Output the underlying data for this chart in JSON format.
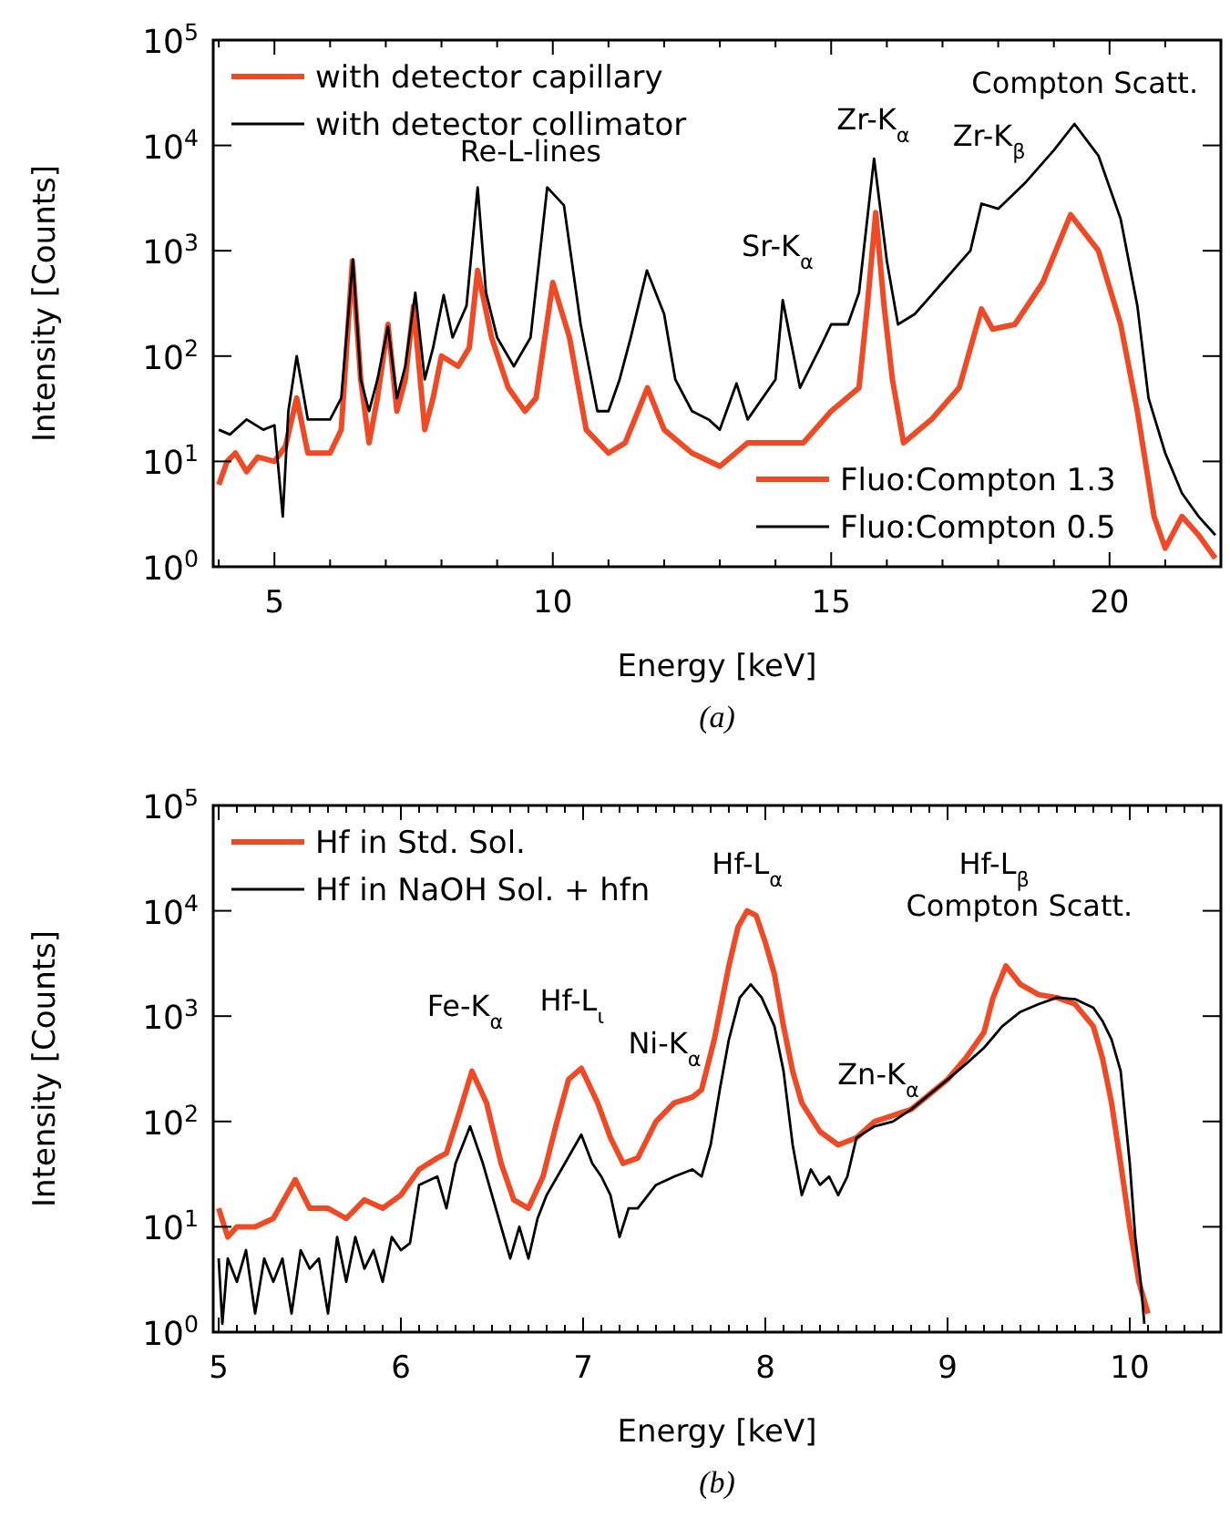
{
  "chart_data": [
    {
      "type": "line",
      "xlabel": "Energy [keV]",
      "ylabel": "Intensity [Counts]",
      "log": true,
      "legend": "top left",
      "line_style": "solid",
      "xlim": [
        3.9,
        22
      ],
      "ylim": [
        1,
        100000
      ],
      "xticks": [
        {
          "value": 4,
          "label": null
        },
        5,
        {
          "value": 6,
          "label": null
        },
        {
          "value": 7,
          "label": null
        },
        {
          "value": 8,
          "label": null
        },
        {
          "value": 9,
          "label": null
        },
        10,
        {
          "value": 11,
          "label": null
        },
        {
          "value": 12,
          "label": null
        },
        {
          "value": 13,
          "label": null
        },
        {
          "value": 14,
          "label": null
        },
        15,
        {
          "value": 16,
          "label": null
        },
        {
          "value": 17,
          "label": null
        },
        {
          "value": 18,
          "label": null
        },
        {
          "value": 19,
          "label": null
        },
        20,
        {
          "value": 21,
          "label": null
        }
      ],
      "yticks": [
        {
          "value": 1,
          "label": "10$^{0}$"
        },
        {
          "value": 10,
          "label": "10$^{1}$"
        },
        {
          "value": 100,
          "label": "10$^{2}$"
        },
        {
          "value": 1000,
          "label": "10$^{3}$"
        },
        {
          "value": 10000,
          "label": "10$^{4}$"
        },
        {
          "value": 100000,
          "label": "10$^{5}$"
        }
      ],
      "series": [
        {
          "name": "with detector capillary",
          "color": "#ef4a26",
          "x": [
            4.0,
            4.15,
            4.3,
            4.5,
            4.7,
            5.0,
            5.2,
            5.4,
            5.6,
            6.0,
            6.2,
            6.4,
            6.55,
            6.7,
            6.85,
            7.04,
            7.2,
            7.35,
            7.5,
            7.7,
            7.85,
            8.0,
            8.3,
            8.5,
            8.65,
            8.9,
            9.2,
            9.5,
            9.7,
            10.0,
            10.3,
            10.6,
            11.0,
            11.3,
            11.7,
            12.0,
            12.5,
            13.0,
            13.5,
            14.0,
            14.5,
            15.0,
            15.5,
            15.65,
            15.8,
            15.95,
            16.1,
            16.3,
            16.8,
            17.3,
            17.7,
            17.9,
            18.3,
            18.8,
            19.3,
            19.8,
            20.2,
            20.5,
            20.8,
            21.0,
            21.3,
            21.6,
            21.9
          ],
          "values": [
            6,
            10,
            12,
            8,
            11,
            10,
            14,
            40,
            12,
            12,
            20,
            800,
            60,
            15,
            40,
            200,
            30,
            60,
            300,
            20,
            40,
            100,
            80,
            120,
            650,
            150,
            50,
            30,
            40,
            500,
            150,
            20,
            12,
            15,
            50,
            20,
            12,
            9,
            15,
            15,
            15,
            30,
            50,
            300,
            2300,
            300,
            60,
            15,
            25,
            50,
            280,
            180,
            200,
            500,
            2200,
            1000,
            200,
            30,
            3,
            1.5,
            3,
            2,
            1.2
          ]
        },
        {
          "name": "with detector collimator",
          "color": "#000000",
          "x": [
            4.0,
            4.2,
            4.5,
            4.8,
            5.0,
            5.15,
            5.25,
            5.4,
            5.6,
            6.0,
            6.2,
            6.41,
            6.55,
            6.7,
            6.85,
            7.04,
            7.2,
            7.35,
            7.53,
            7.7,
            7.85,
            8.04,
            8.2,
            8.45,
            8.65,
            8.8,
            9.0,
            9.3,
            9.6,
            9.9,
            10.2,
            10.5,
            10.8,
            11.0,
            11.2,
            11.4,
            11.69,
            12.0,
            12.2,
            12.5,
            12.8,
            13.0,
            13.3,
            13.5,
            14.0,
            14.13,
            14.44,
            14.8,
            15.0,
            15.3,
            15.5,
            15.77,
            16.0,
            16.2,
            16.5,
            17.0,
            17.5,
            17.7,
            18.0,
            18.5,
            19.0,
            19.37,
            19.8,
            20.2,
            20.5,
            20.7,
            21.0,
            21.3,
            21.6,
            21.9
          ],
          "values": [
            20,
            18,
            25,
            20,
            22,
            3,
            30,
            100,
            25,
            25,
            40,
            830,
            60,
            30,
            60,
            190,
            40,
            80,
            400,
            60,
            120,
            380,
            150,
            300,
            4000,
            400,
            150,
            80,
            150,
            4000,
            2700,
            200,
            30,
            30,
            60,
            150,
            650,
            250,
            60,
            30,
            25,
            20,
            55,
            25,
            60,
            340,
            50,
            120,
            200,
            200,
            400,
            7500,
            800,
            200,
            250,
            500,
            1000,
            2800,
            2500,
            4500,
            9000,
            16000,
            8000,
            2000,
            300,
            40,
            12,
            5,
            3,
            2
          ]
        }
      ],
      "annotations": [
        "Re-L-lines",
        "Sr-K$_{α}$",
        "Zr-K$_{α}$",
        "Zr-K$_{β}$",
        "Compton Scatt.",
        "Fluo:Compton 1.3",
        "Fluo:Compton 0.5",
        "(a)"
      ]
    },
    {
      "type": "line",
      "xlabel": "Energy [keV]",
      "ylabel": "Intensity [Counts]",
      "log": true,
      "legend": "top left",
      "line_style": "solid",
      "xlim": [
        4.97,
        10.5
      ],
      "ylim": [
        1,
        100000
      ],
      "xticks": [
        5,
        {
          "value": 5.1,
          "label": null
        },
        {
          "value": 5.2,
          "label": null
        },
        {
          "value": 5.3,
          "label": null
        },
        {
          "value": 5.4,
          "label": null
        },
        {
          "value": 5.5,
          "label": null
        },
        {
          "value": 5.6,
          "label": null
        },
        {
          "value": 5.7,
          "label": null
        },
        {
          "value": 5.8,
          "label": null
        },
        {
          "value": 5.9,
          "label": null
        },
        6,
        {
          "value": 6.1,
          "label": null
        },
        {
          "value": 6.2,
          "label": null
        },
        {
          "value": 6.3,
          "label": null
        },
        {
          "value": 6.4,
          "label": null
        },
        {
          "value": 6.5,
          "label": null
        },
        {
          "value": 6.6,
          "label": null
        },
        {
          "value": 6.7,
          "label": null
        },
        {
          "value": 6.8,
          "label": null
        },
        {
          "value": 6.9,
          "label": null
        },
        7,
        {
          "value": 7.1,
          "label": null
        },
        {
          "value": 7.2,
          "label": null
        },
        {
          "value": 7.3,
          "label": null
        },
        {
          "value": 7.4,
          "label": null
        },
        {
          "value": 7.5,
          "label": null
        },
        {
          "value": 7.6,
          "label": null
        },
        {
          "value": 7.7,
          "label": null
        },
        {
          "value": 7.8,
          "label": null
        },
        {
          "value": 7.9,
          "label": null
        },
        8,
        {
          "value": 8.1,
          "label": null
        },
        {
          "value": 8.2,
          "label": null
        },
        {
          "value": 8.3,
          "label": null
        },
        {
          "value": 8.4,
          "label": null
        },
        {
          "value": 8.5,
          "label": null
        },
        {
          "value": 8.6,
          "label": null
        },
        {
          "value": 8.7,
          "label": null
        },
        {
          "value": 8.8,
          "label": null
        },
        {
          "value": 8.9,
          "label": null
        },
        9,
        {
          "value": 9.1,
          "label": null
        },
        {
          "value": 9.2,
          "label": null
        },
        {
          "value": 9.3,
          "label": null
        },
        {
          "value": 9.4,
          "label": null
        },
        {
          "value": 9.5,
          "label": null
        },
        {
          "value": 9.6,
          "label": null
        },
        {
          "value": 9.7,
          "label": null
        },
        {
          "value": 9.8,
          "label": null
        },
        {
          "value": 9.9,
          "label": null
        },
        10,
        {
          "value": 10.1,
          "label": null
        },
        {
          "value": 10.2,
          "label": null
        },
        {
          "value": 10.3,
          "label": null
        },
        {
          "value": 10.4,
          "label": null
        }
      ],
      "yticks": [
        {
          "value": 1,
          "label": "10$^{0}$"
        },
        {
          "value": 10,
          "label": "10$^{1}$"
        },
        {
          "value": 100,
          "label": "10$^{2}$"
        },
        {
          "value": 1000,
          "label": "10$^{3}$"
        },
        {
          "value": 10000,
          "label": "10$^{4}$"
        },
        {
          "value": 100000,
          "label": "10$^{5}$"
        }
      ],
      "series": [
        {
          "name": "Hf in Std. Sol.",
          "color": "#ef4a26",
          "x": [
            5.0,
            5.05,
            5.1,
            5.2,
            5.3,
            5.42,
            5.5,
            5.6,
            5.7,
            5.8,
            5.9,
            6.0,
            6.1,
            6.2,
            6.25,
            6.32,
            6.39,
            6.47,
            6.55,
            6.62,
            6.7,
            6.78,
            6.85,
            6.92,
            6.99,
            7.08,
            7.15,
            7.22,
            7.3,
            7.4,
            7.5,
            7.6,
            7.65,
            7.72,
            7.8,
            7.85,
            7.9,
            7.95,
            8.0,
            8.05,
            8.1,
            8.15,
            8.2,
            8.3,
            8.4,
            8.5,
            8.6,
            8.8,
            9.0,
            9.1,
            9.2,
            9.25,
            9.32,
            9.4,
            9.5,
            9.6,
            9.7,
            9.8,
            9.85,
            9.9,
            9.95,
            10.0,
            10.05,
            10.1
          ],
          "values": [
            15,
            8,
            10,
            10,
            12,
            28,
            15,
            15,
            12,
            18,
            15,
            20,
            35,
            45,
            50,
            120,
            300,
            150,
            40,
            18,
            15,
            30,
            90,
            250,
            320,
            150,
            70,
            40,
            45,
            100,
            150,
            170,
            200,
            600,
            3000,
            7000,
            10000,
            9000,
            5000,
            2500,
            800,
            300,
            150,
            80,
            60,
            70,
            100,
            130,
            250,
            400,
            700,
            1500,
            3000,
            2000,
            1600,
            1500,
            1300,
            800,
            400,
            150,
            40,
            10,
            3,
            1.5
          ]
        },
        {
          "name": "Hf in NaOH Sol. + hfn",
          "color": "#000000",
          "x": [
            5.0,
            5.02,
            5.05,
            5.1,
            5.15,
            5.2,
            5.25,
            5.3,
            5.35,
            5.4,
            5.45,
            5.5,
            5.55,
            5.6,
            5.65,
            5.7,
            5.75,
            5.8,
            5.85,
            5.9,
            5.95,
            6.0,
            6.05,
            6.1,
            6.2,
            6.25,
            6.3,
            6.38,
            6.45,
            6.5,
            6.55,
            6.6,
            6.65,
            6.7,
            6.75,
            6.8,
            6.9,
            6.99,
            7.05,
            7.1,
            7.15,
            7.2,
            7.25,
            7.3,
            7.4,
            7.5,
            7.6,
            7.65,
            7.7,
            7.75,
            7.8,
            7.86,
            7.92,
            7.98,
            8.05,
            8.1,
            8.15,
            8.2,
            8.25,
            8.3,
            8.35,
            8.4,
            8.45,
            8.5,
            8.6,
            8.7,
            8.8,
            9.0,
            9.1,
            9.2,
            9.3,
            9.4,
            9.5,
            9.6,
            9.7,
            9.8,
            9.85,
            9.9,
            9.95,
            10.0,
            10.03,
            10.06,
            10.08
          ],
          "values": [
            5,
            1.2,
            5,
            3,
            6,
            1.5,
            5,
            3,
            5,
            1.5,
            6,
            4,
            5,
            1.5,
            8,
            3,
            8,
            4,
            6,
            3,
            8,
            6,
            7,
            25,
            30,
            15,
            40,
            90,
            40,
            20,
            10,
            5,
            10,
            5,
            12,
            20,
            40,
            75,
            40,
            30,
            20,
            8,
            15,
            15,
            25,
            30,
            35,
            30,
            60,
            200,
            600,
            1500,
            2000,
            1500,
            800,
            300,
            60,
            20,
            35,
            25,
            30,
            20,
            30,
            70,
            90,
            100,
            130,
            250,
            350,
            500,
            800,
            1100,
            1300,
            1500,
            1450,
            1200,
            900,
            600,
            300,
            40,
            8,
            3,
            1.2
          ]
        }
      ],
      "annotations": [
        "Fe-K$_{α}$",
        "Hf-L$_{ι}$",
        "Ni-K$_{α}$",
        "Hf-L$_{α}$",
        "Zn-K$_{α}$",
        "Hf-L$_{β}$",
        "Compton Scatt.",
        "(b)"
      ]
    }
  ]
}
